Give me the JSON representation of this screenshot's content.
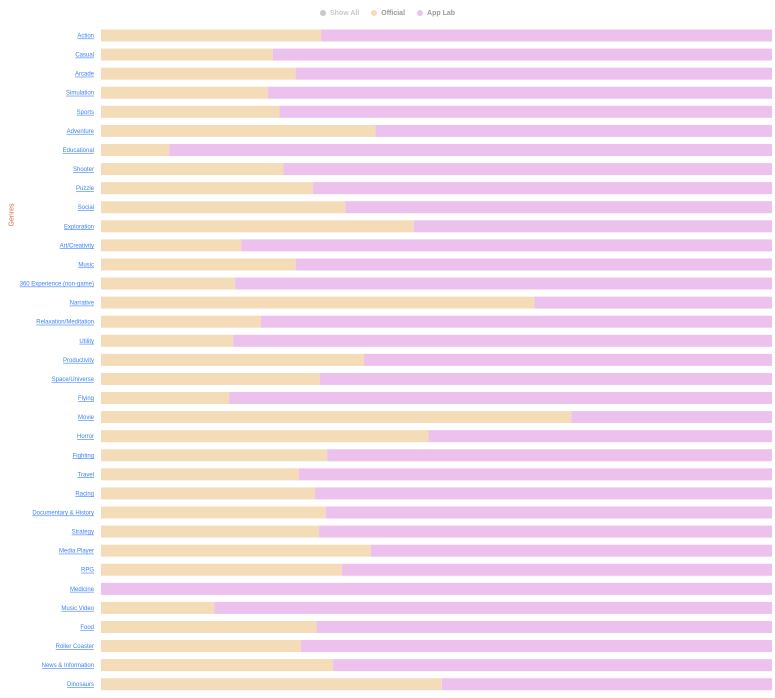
{
  "legend": {
    "show_all": "Show All",
    "items": [
      {
        "label": "Official",
        "color": "#f5dcb8"
      },
      {
        "label": "App Lab",
        "color": "#ecc1ee"
      }
    ],
    "show_all_color": "#c8c8c8",
    "text_color": "#999999"
  },
  "chart_data": {
    "type": "bar",
    "orientation": "horizontal",
    "stacked": "percent",
    "ylabel": "Genres",
    "ylabel_color": "#d2694a",
    "xlim": [
      0,
      100
    ],
    "grid": false,
    "legend_position": "top-center",
    "categories": [
      "Action",
      "Casual",
      "Arcade",
      "Simulation",
      "Sports",
      "Adventure",
      "Educational",
      "Shooter",
      "Puzzle",
      "Social",
      "Exploration",
      "Art/Creativity",
      "Music",
      "360 Experience (non-game)",
      "Narrative",
      "Relaxation/Meditation",
      "Utility",
      "Productivity",
      "Space/Universe",
      "Flying",
      "Movie",
      "Horror",
      "Fighting",
      "Travel",
      "Racing",
      "Documentary & History",
      "Strategy",
      "Media Player",
      "RPG",
      "Medicine",
      "Music Video",
      "Food",
      "Roller Coaster",
      "News & Information",
      "Dinosaurs"
    ],
    "series": [
      {
        "name": "Official",
        "color": "#f5dcb8",
        "values": [
          32.8,
          25.6,
          29.0,
          24.9,
          26.6,
          40.9,
          10.2,
          27.2,
          31.6,
          36.4,
          46.6,
          20.9,
          29.0,
          20.0,
          64.6,
          23.8,
          19.7,
          39.2,
          32.6,
          19.1,
          70.1,
          48.8,
          33.7,
          29.5,
          31.9,
          33.5,
          32.5,
          40.2,
          35.9,
          0.0,
          16.9,
          32.1,
          29.8,
          34.6,
          50.8
        ]
      },
      {
        "name": "App Lab",
        "color": "#ecc1ee",
        "values": [
          67.2,
          74.4,
          71.0,
          75.1,
          73.4,
          59.1,
          89.8,
          72.8,
          68.4,
          63.6,
          53.4,
          79.1,
          71.0,
          80.0,
          35.4,
          76.2,
          80.3,
          60.8,
          67.4,
          80.9,
          29.9,
          51.2,
          66.3,
          70.5,
          68.1,
          66.5,
          67.5,
          59.8,
          64.1,
          100.0,
          83.1,
          67.9,
          70.2,
          65.4,
          49.2
        ]
      }
    ]
  }
}
